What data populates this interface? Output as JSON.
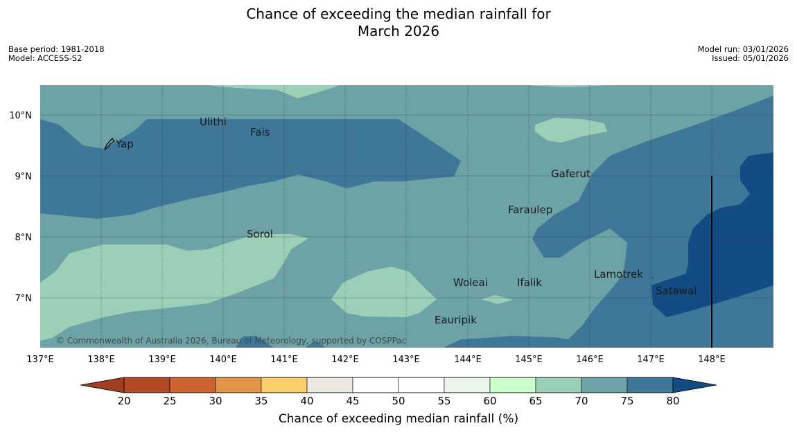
{
  "title_line1": "Chance of exceeding the median rainfall for",
  "title_line2": "March 2026",
  "base_period": "Base period: 1981-2018",
  "model": "Model: ACCESS-S2",
  "model_run": "Model run: 03/01/2026",
  "issued": "Issued: 05/01/2026",
  "copyright": "© Commonwealth of Australia 2026, Bureau of Meteorology, supported by COSPPac",
  "longitude_labels": [
    "137°E",
    "138°E",
    "139°E",
    "140°E",
    "141°E",
    "142°E",
    "143°E",
    "144°E",
    "145°E",
    "146°E",
    "147°E",
    "148°E"
  ],
  "latitude_labels": [
    "10°N",
    "9°N",
    "8°N",
    "7°N"
  ],
  "places": [
    "Yap",
    "Ulithi",
    "Fais",
    "Gaferut",
    "Faraulep",
    "Sorol",
    "Woleai",
    "Ifalik",
    "Lamotrek",
    "Satawal",
    "Eauripik"
  ],
  "colorbar": {
    "ticks": [
      "20",
      "25",
      "30",
      "35",
      "40",
      "45",
      "50",
      "55",
      "60",
      "65",
      "70",
      "75",
      "80"
    ],
    "label": "Chance of exceeding median rainfall (%)",
    "colors": [
      "#b14a25",
      "#cf6330",
      "#e29548",
      "#fdcf6a",
      "#ece8e2",
      "#ffffff",
      "#ffffff",
      "#ebf5eb",
      "#cbffcb",
      "#9ccfb7",
      "#6da2a6",
      "#3e7798",
      "#134c85"
    ],
    "under_color": "#9e3f22",
    "over_color": "#134c85"
  },
  "fill_colors": {
    "c60_65": "#cbffcb",
    "c65_70": "#9ccfb7",
    "c70_75": "#6da2a6",
    "c75_80": "#3e7798",
    "c80p": "#134c85"
  }
}
